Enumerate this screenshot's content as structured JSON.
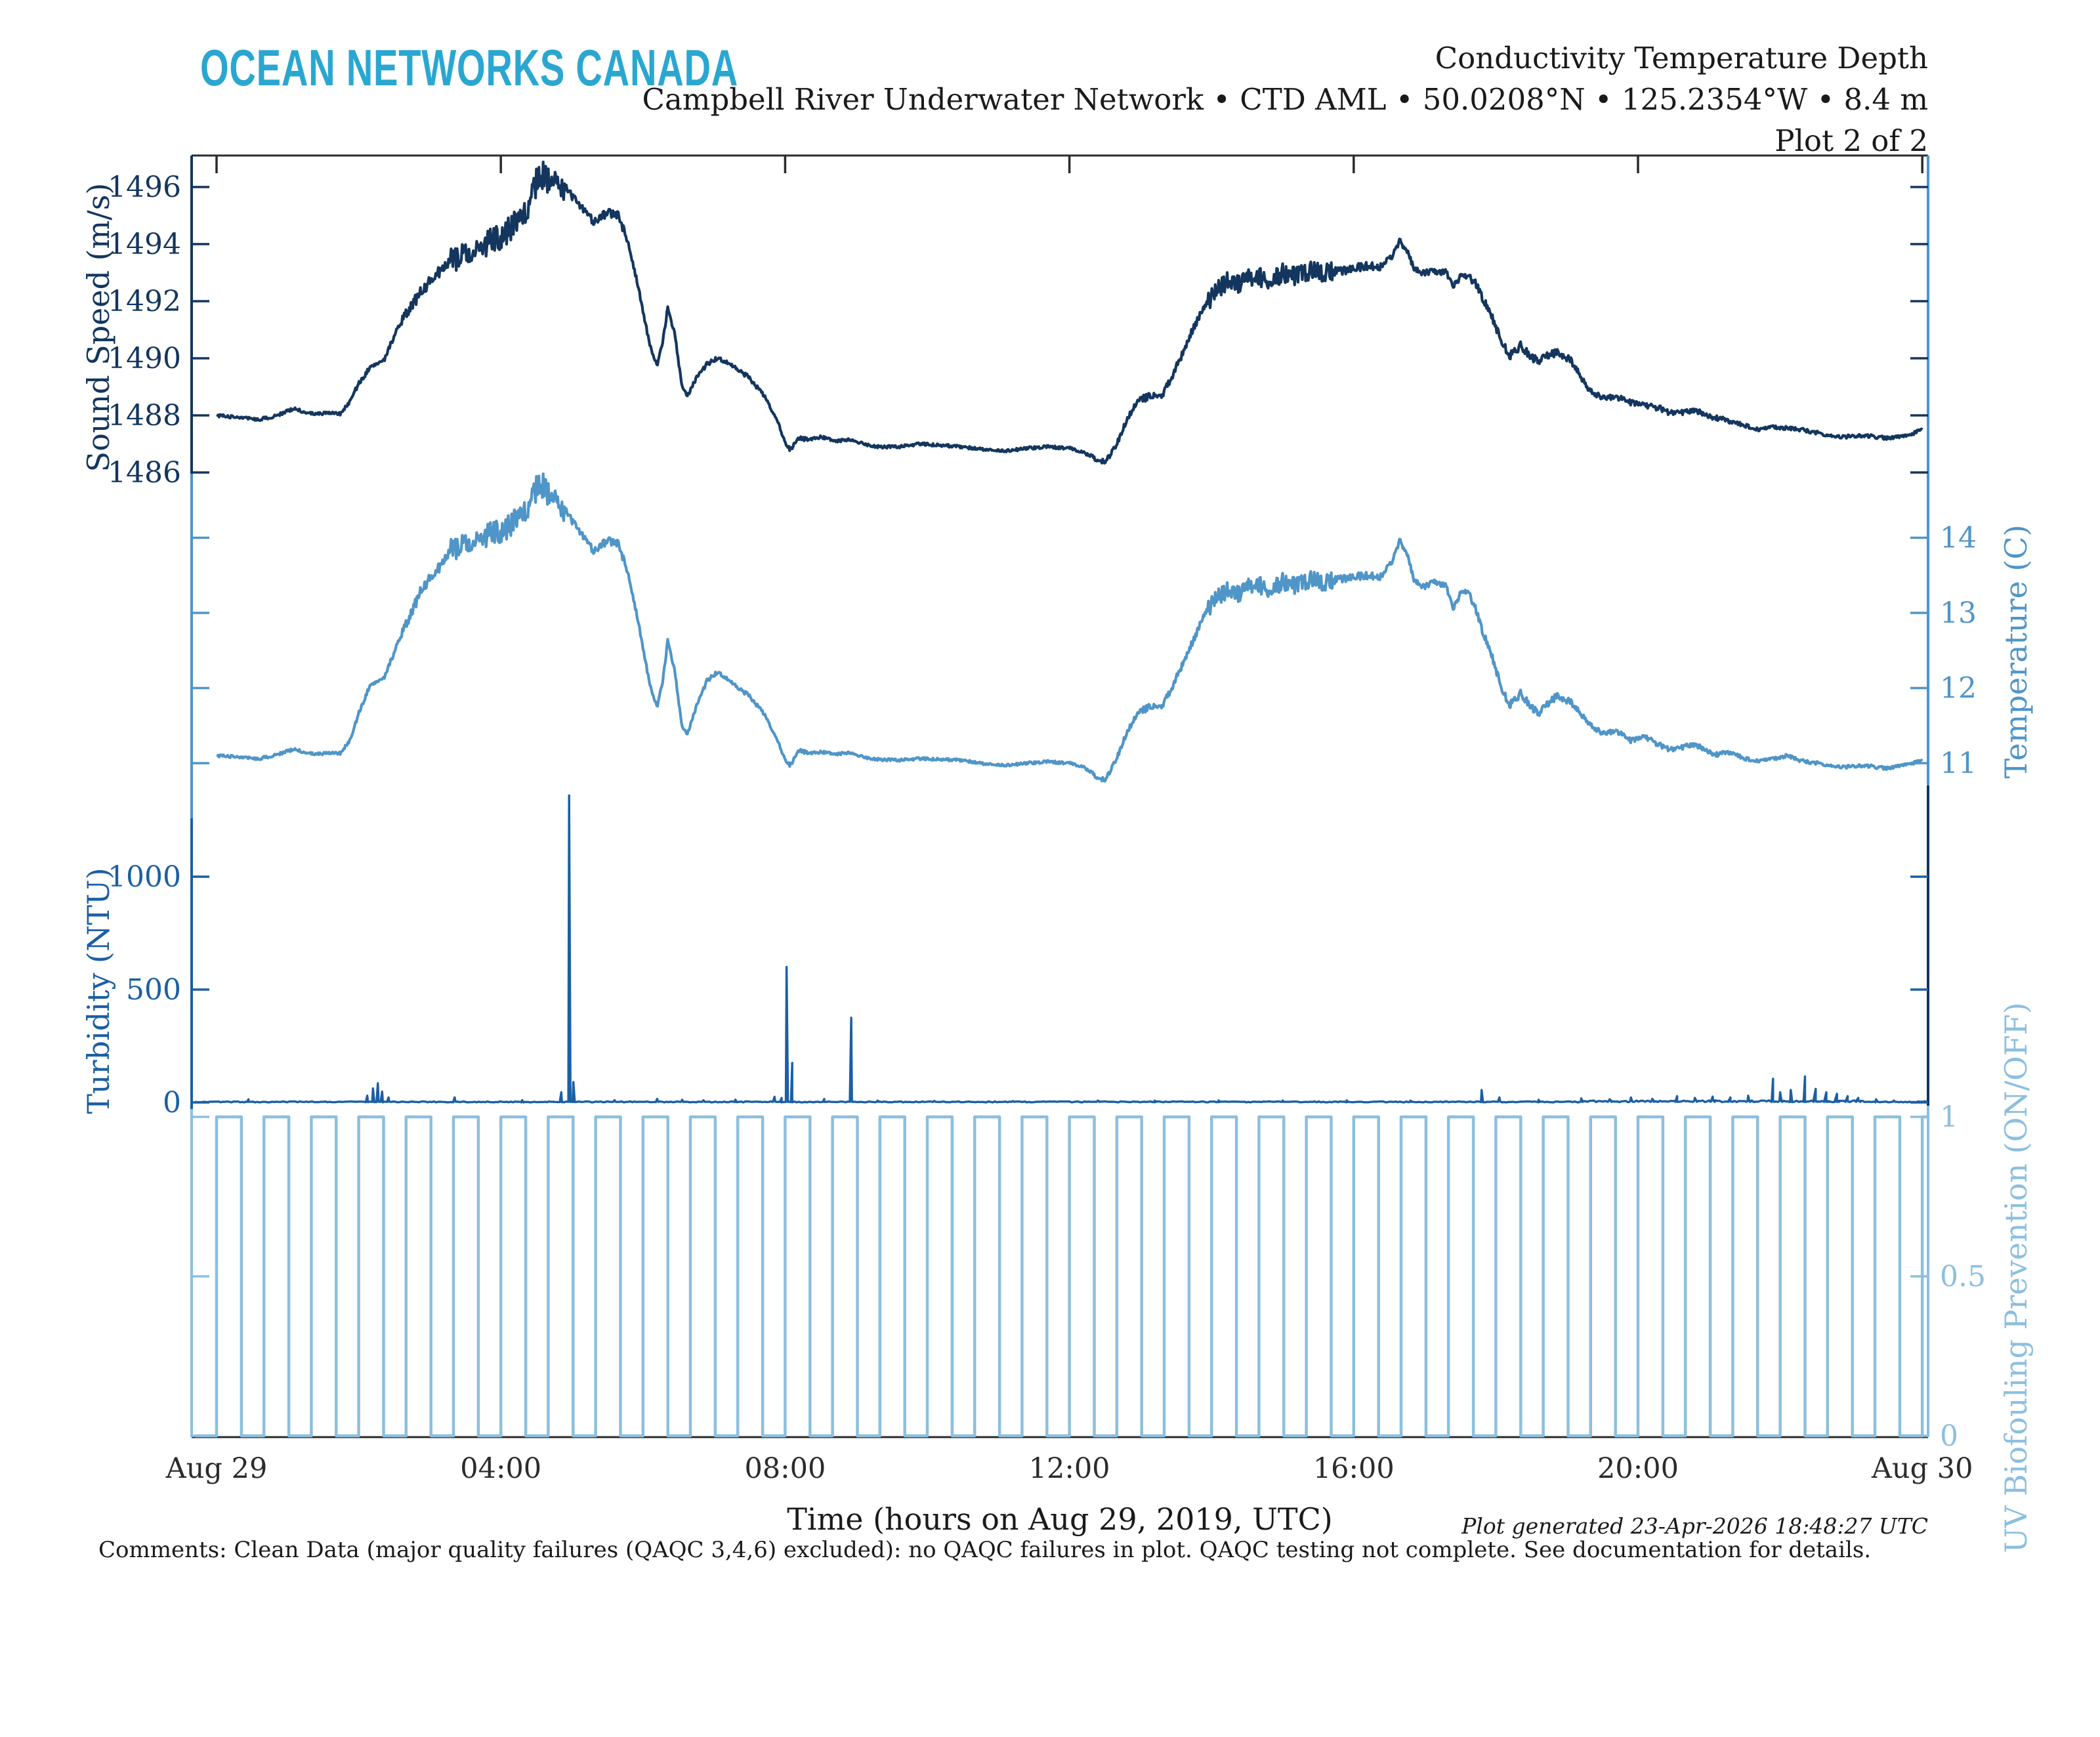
{
  "header": {
    "logo": "OCEAN NETWORKS CANADA",
    "title_line1": "Conductivity Temperature Depth",
    "title_line2": "Campbell River Underwater Network • CTD AML • 50.0208°N • 125.2354°W • 8.4 m",
    "title_line3": "Plot 2 of 2"
  },
  "footer": {
    "comments": "Comments: Clean Data (major quality failures (QAQC 3,4,6) excluded): no QAQC failures in plot. QAQC testing not complete. See documentation for details.",
    "generated": "Plot generated 23-Apr-2026 18:48:27 UTC"
  },
  "colors": {
    "logo_teal": "#2aa7d0",
    "sound_speed_navy": "#14365e",
    "turbidity_blue": "#1b5fa5",
    "temperature_blue": "#4f95c8",
    "uv_pale_blue": "#8cbfdf",
    "frame_black": "#2b2b2b",
    "text_black": "#1a1a1a"
  },
  "chart_data": {
    "type": "line",
    "title": "Conductivity Temperature Depth — Plot 2 of 2",
    "xlabel": "Time (hours on Aug 29, 2019, UTC)",
    "x_range_hours": [
      -0.35,
      24.08
    ],
    "grid": false,
    "x_ticks": [
      {
        "t": 0,
        "label": "Aug 29"
      },
      {
        "t": 4,
        "label": "04:00"
      },
      {
        "t": 8,
        "label": "08:00"
      },
      {
        "t": 12,
        "label": "12:00"
      },
      {
        "t": 16,
        "label": "16:00"
      },
      {
        "t": 20,
        "label": "20:00"
      },
      {
        "t": 24,
        "label": "Aug 30"
      }
    ],
    "axes": {
      "sound_speed": {
        "title": "Sound Speed (m/s)",
        "side": "left",
        "color": "#14365e",
        "ticks": [
          1486,
          1488,
          1490,
          1492,
          1494,
          1496
        ]
      },
      "temperature": {
        "title": "Temperature (C)",
        "side": "right",
        "color": "#4f95c8",
        "ticks": [
          11,
          12,
          13,
          14
        ]
      },
      "turbidity": {
        "title": "Turbidity (NTU)",
        "side": "left",
        "color": "#1b5fa5",
        "ticks": [
          0,
          500,
          1000
        ]
      },
      "uv": {
        "title": "UV Biofouling Prevention (ON/OFF)",
        "side": "right",
        "color": "#8cbfdf",
        "ticks": [
          0,
          0.5,
          1
        ]
      }
    },
    "series": {
      "t_hours": [
        0,
        0.2,
        0.4,
        0.6,
        0.8,
        1.0,
        1.1,
        1.25,
        1.4,
        1.6,
        1.75,
        1.9,
        2.0,
        2.15,
        2.25,
        2.35,
        2.5,
        2.7,
        2.9,
        3.1,
        3.3,
        3.5,
        3.7,
        3.9,
        4.1,
        4.3,
        4.55,
        4.7,
        4.9,
        5.1,
        5.3,
        5.5,
        5.65,
        5.8,
        5.95,
        6.1,
        6.2,
        6.28,
        6.35,
        6.45,
        6.55,
        6.62,
        6.75,
        6.9,
        7.05,
        7.2,
        7.35,
        7.5,
        7.7,
        7.9,
        8.0,
        8.07,
        8.2,
        8.35,
        8.5,
        8.7,
        8.9,
        9.1,
        9.3,
        9.6,
        9.9,
        10.2,
        10.5,
        10.8,
        11.1,
        11.4,
        11.7,
        12.0,
        12.2,
        12.4,
        12.5,
        12.65,
        12.8,
        12.95,
        13.1,
        13.3,
        13.45,
        13.6,
        13.75,
        13.9,
        14.05,
        14.2,
        14.4,
        14.6,
        14.8,
        15.0,
        15.2,
        15.4,
        15.6,
        15.8,
        16.0,
        16.2,
        16.4,
        16.55,
        16.65,
        16.75,
        16.85,
        17.0,
        17.15,
        17.3,
        17.4,
        17.5,
        17.6,
        17.7,
        17.8,
        17.95,
        18.1,
        18.2,
        18.35,
        18.5,
        18.6,
        18.75,
        18.85,
        19.0,
        19.1,
        19.3,
        19.5,
        19.7,
        19.9,
        20.1,
        20.3,
        20.5,
        20.7,
        20.9,
        21.1,
        21.3,
        21.5,
        21.7,
        21.9,
        22.1,
        22.3,
        22.6,
        22.9,
        23.2,
        23.5,
        23.8,
        24.0
      ],
      "temperature_C": [
        11.1,
        11.09,
        11.07,
        11.06,
        11.1,
        11.16,
        11.19,
        11.14,
        11.12,
        11.14,
        11.13,
        11.35,
        11.66,
        12.02,
        12.1,
        12.12,
        12.48,
        12.92,
        13.34,
        13.56,
        13.83,
        13.9,
        14.0,
        14.05,
        14.15,
        14.3,
        14.75,
        14.55,
        14.37,
        14.1,
        13.83,
        13.96,
        13.92,
        13.5,
        12.8,
        12.02,
        11.75,
        12.1,
        12.65,
        12.2,
        11.48,
        11.39,
        11.75,
        12.1,
        12.21,
        12.1,
        12.0,
        11.89,
        11.66,
        11.3,
        11.03,
        10.97,
        11.17,
        11.13,
        11.15,
        11.12,
        11.14,
        11.08,
        11.05,
        11.04,
        11.06,
        11.05,
        11.04,
        10.99,
        10.97,
        11.0,
        11.02,
        11.0,
        10.95,
        10.81,
        10.77,
        11.03,
        11.39,
        11.66,
        11.74,
        11.76,
        12.02,
        12.33,
        12.65,
        12.98,
        13.16,
        13.3,
        13.25,
        13.4,
        13.3,
        13.42,
        13.35,
        13.44,
        13.4,
        13.45,
        13.48,
        13.5,
        13.48,
        13.7,
        13.96,
        13.8,
        13.42,
        13.35,
        13.42,
        13.35,
        13.05,
        13.25,
        13.3,
        13.1,
        12.8,
        12.4,
        11.95,
        11.78,
        11.93,
        11.75,
        11.66,
        11.8,
        11.89,
        11.83,
        11.78,
        11.53,
        11.39,
        11.43,
        11.3,
        11.35,
        11.24,
        11.17,
        11.24,
        11.21,
        11.11,
        11.15,
        11.06,
        11.03,
        11.06,
        11.1,
        11.03,
        10.99,
        10.95,
        10.97,
        10.93,
        10.99,
        11.03
      ],
      "sound_speed_ms": [
        1488.0,
        1487.95,
        1487.9,
        1487.86,
        1487.95,
        1488.15,
        1488.25,
        1488.1,
        1488.05,
        1488.1,
        1488.05,
        1488.6,
        1489.1,
        1489.66,
        1489.85,
        1489.9,
        1490.8,
        1491.7,
        1492.4,
        1492.95,
        1493.4,
        1493.6,
        1493.9,
        1494.1,
        1494.5,
        1494.9,
        1496.5,
        1496.2,
        1496.0,
        1495.4,
        1494.8,
        1495.1,
        1495.0,
        1494.0,
        1492.3,
        1490.4,
        1489.75,
        1490.6,
        1491.8,
        1490.8,
        1489.0,
        1488.7,
        1489.3,
        1489.8,
        1490.0,
        1489.8,
        1489.6,
        1489.3,
        1488.7,
        1487.8,
        1487.0,
        1486.8,
        1487.2,
        1487.15,
        1487.25,
        1487.1,
        1487.15,
        1487.0,
        1486.9,
        1486.9,
        1487.0,
        1486.95,
        1486.9,
        1486.8,
        1486.75,
        1486.85,
        1486.9,
        1486.85,
        1486.7,
        1486.45,
        1486.36,
        1486.9,
        1487.8,
        1488.5,
        1488.65,
        1488.7,
        1489.4,
        1490.2,
        1491.1,
        1491.8,
        1492.25,
        1492.7,
        1492.6,
        1492.9,
        1492.7,
        1493.0,
        1492.85,
        1493.05,
        1493.0,
        1493.05,
        1493.15,
        1493.25,
        1493.2,
        1493.6,
        1494.1,
        1493.8,
        1493.1,
        1493.0,
        1493.05,
        1493.0,
        1492.5,
        1492.85,
        1492.9,
        1492.7,
        1492.2,
        1491.4,
        1490.5,
        1490.1,
        1490.45,
        1490.05,
        1489.9,
        1490.1,
        1490.2,
        1490.0,
        1489.8,
        1488.9,
        1488.6,
        1488.65,
        1488.45,
        1488.35,
        1488.25,
        1488.05,
        1488.15,
        1488.1,
        1487.9,
        1487.8,
        1487.65,
        1487.5,
        1487.6,
        1487.55,
        1487.5,
        1487.35,
        1487.25,
        1487.3,
        1487.2,
        1487.3,
        1487.5
      ],
      "noise_segments": [
        [
          0,
          1.8,
          0.018
        ],
        [
          1.8,
          2.6,
          0.03
        ],
        [
          2.6,
          3.3,
          0.07
        ],
        [
          3.3,
          4.9,
          0.17
        ],
        [
          4.9,
          5.75,
          0.05
        ],
        [
          5.75,
          7.6,
          0.028
        ],
        [
          7.6,
          8.3,
          0.025
        ],
        [
          8.3,
          12.3,
          0.018
        ],
        [
          12.3,
          13.0,
          0.03
        ],
        [
          13.0,
          13.95,
          0.045
        ],
        [
          13.95,
          15.7,
          0.12
        ],
        [
          15.7,
          16.5,
          0.05
        ],
        [
          16.5,
          17.65,
          0.04
        ],
        [
          17.65,
          19.2,
          0.05
        ],
        [
          19.2,
          21.3,
          0.035
        ],
        [
          21.3,
          24,
          0.022
        ]
      ],
      "turbidity_NTU": {
        "baseline": 2.5,
        "spikes": [
          [
            0.45,
            14,
            0.02
          ],
          [
            2.12,
            30,
            0.02
          ],
          [
            2.2,
            62,
            0.02
          ],
          [
            2.27,
            85,
            0.02
          ],
          [
            2.33,
            48,
            0.02
          ],
          [
            2.42,
            22,
            0.02
          ],
          [
            3.35,
            22,
            0.02
          ],
          [
            4.3,
            10,
            0.02
          ],
          [
            4.85,
            45,
            0.02
          ],
          [
            4.96,
            1360,
            0.022
          ],
          [
            5.02,
            90,
            0.02
          ],
          [
            5.6,
            10,
            0.02
          ],
          [
            6.2,
            16,
            0.02
          ],
          [
            6.55,
            12,
            0.02
          ],
          [
            6.85,
            10,
            0.02
          ],
          [
            7.3,
            12,
            0.02
          ],
          [
            7.85,
            25,
            0.02
          ],
          [
            7.95,
            20,
            0.02
          ],
          [
            8.02,
            600,
            0.02
          ],
          [
            8.1,
            175,
            0.018
          ],
          [
            8.55,
            15,
            0.02
          ],
          [
            8.93,
            375,
            0.02
          ],
          [
            9.3,
            8,
            0.02
          ],
          [
            10.1,
            7,
            0.02
          ],
          [
            11.2,
            6,
            0.02
          ],
          [
            12.4,
            8,
            0.02
          ],
          [
            13.2,
            8,
            0.02
          ],
          [
            14.1,
            9,
            0.02
          ],
          [
            15.0,
            8,
            0.02
          ],
          [
            15.9,
            9,
            0.02
          ],
          [
            16.8,
            8,
            0.02
          ],
          [
            17.8,
            55,
            0.02
          ],
          [
            18.05,
            22,
            0.02
          ],
          [
            18.6,
            12,
            0.02
          ],
          [
            19.2,
            18,
            0.025
          ],
          [
            19.6,
            14,
            0.025
          ],
          [
            19.9,
            22,
            0.025
          ],
          [
            20.2,
            16,
            0.025
          ],
          [
            20.55,
            28,
            0.025
          ],
          [
            20.8,
            20,
            0.03
          ],
          [
            21.05,
            26,
            0.03
          ],
          [
            21.3,
            22,
            0.03
          ],
          [
            21.55,
            30,
            0.03
          ],
          [
            21.9,
            105,
            0.02
          ],
          [
            22.0,
            45,
            0.03
          ],
          [
            22.15,
            55,
            0.03
          ],
          [
            22.35,
            115,
            0.02
          ],
          [
            22.5,
            60,
            0.03
          ],
          [
            22.65,
            45,
            0.03
          ],
          [
            22.8,
            38,
            0.03
          ],
          [
            22.95,
            28,
            0.03
          ],
          [
            23.1,
            20,
            0.03
          ],
          [
            23.35,
            14,
            0.02
          ],
          [
            23.6,
            8,
            0.02
          ]
        ]
      },
      "uv_on_off": {
        "period_h": 0.66667,
        "on_h": 0.35,
        "first_rise_h": 0,
        "end_h": 24.08,
        "value_on": 1,
        "value_off": 0
      }
    }
  }
}
